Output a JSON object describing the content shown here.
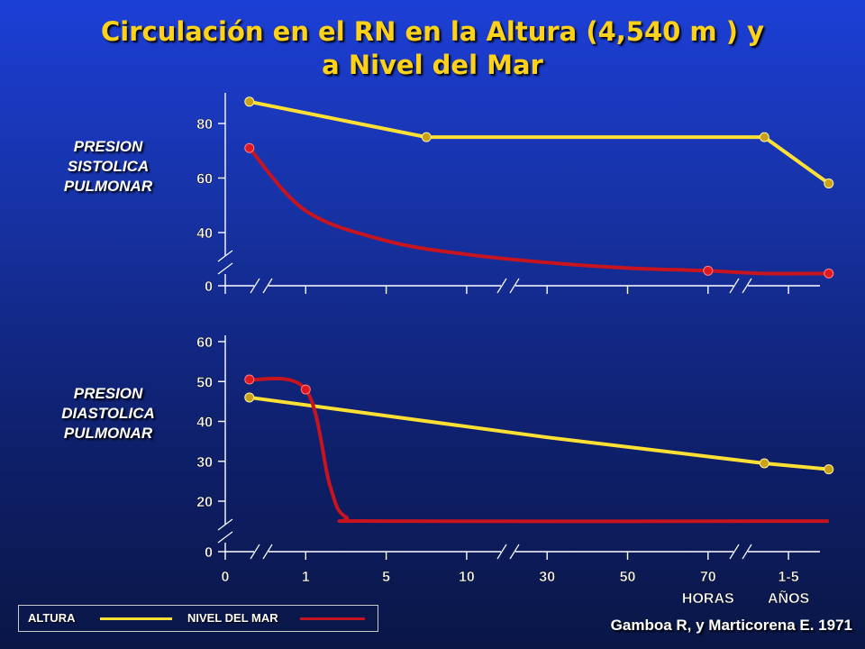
{
  "title_line1": "Circulación en el RN en la Altura (4,540 m ) y",
  "title_line2": "a Nivel del Mar",
  "credit": "Gamboa R, y Marticorena E. 1971",
  "legend": {
    "altura": "ALTURA",
    "nivel": "NIVEL DEL MAR",
    "altura_color": "#ffe033",
    "nivel_color": "#c8141e"
  },
  "x_axis": {
    "tick_labels": [
      "0",
      "1",
      "5",
      "10",
      "30",
      "50",
      "70",
      "1-5"
    ],
    "unit_labels": {
      "horas": "HORAS",
      "anos": "AÑOS"
    }
  },
  "chart_data": [
    {
      "type": "line",
      "title": "PRESION SISTOLICA PULMONAR",
      "title_lines": [
        "PRESION",
        "SISTOLICA",
        "PULMONAR"
      ],
      "y_ticks": [
        0,
        40,
        60,
        80
      ],
      "y_axis_break": "between 0 and 40",
      "series": [
        {
          "name": "ALTURA",
          "color": "#ffe033",
          "points": [
            [
              0.3,
              88
            ],
            [
              2.5,
              75
            ],
            [
              6.7,
              75
            ],
            [
              7.5,
              58
            ]
          ]
        },
        {
          "name": "NIVEL DEL MAR",
          "color": "#c8141e",
          "points": [
            [
              0.3,
              71
            ],
            [
              1.0,
              48
            ],
            [
              2.0,
              37
            ],
            [
              3.0,
              32
            ],
            [
              4.0,
              29
            ],
            [
              5.0,
              27
            ],
            [
              6.0,
              26
            ],
            [
              6.7,
              25
            ],
            [
              7.5,
              25
            ]
          ]
        }
      ]
    },
    {
      "type": "line",
      "title": "PRESION DIASTOLICA PULMONAR",
      "title_lines": [
        "PRESION",
        "DIASTOLICA",
        "PULMONAR"
      ],
      "y_ticks": [
        0,
        20,
        30,
        40,
        50,
        60
      ],
      "y_axis_break": "between 0 and 20",
      "series": [
        {
          "name": "ALTURA",
          "color": "#ffe033",
          "points": [
            [
              0.3,
              46
            ],
            [
              4.0,
              36
            ],
            [
              6.7,
              29.5
            ],
            [
              7.5,
              28
            ]
          ]
        },
        {
          "name": "NIVEL DEL MAR",
          "color": "#c8141e",
          "points": [
            [
              0.3,
              50.5
            ],
            [
              1.0,
              48
            ],
            [
              1.3,
              24
            ],
            [
              1.5,
              16
            ],
            [
              2.0,
              15
            ],
            [
              7.5,
              15
            ]
          ]
        }
      ]
    }
  ]
}
